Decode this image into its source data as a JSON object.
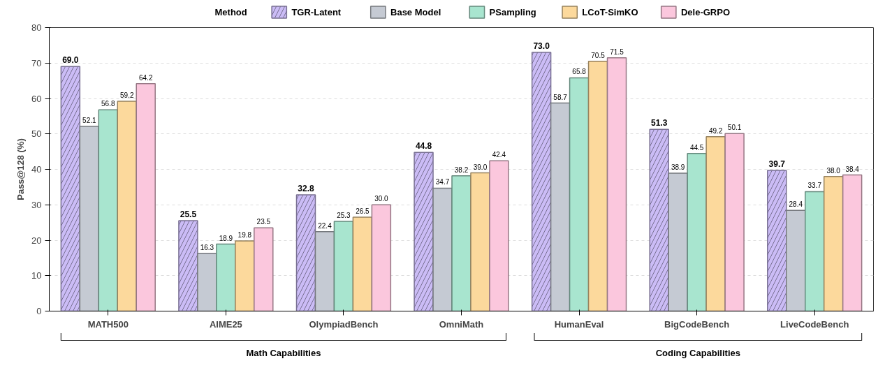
{
  "chart_data": {
    "type": "bar",
    "ylabel": "Pass@128 (%)",
    "legend_title": "Method",
    "legend": "top",
    "categories": [
      "MATH500",
      "AIME25",
      "OlympiadBench",
      "OmniMath",
      "HumanEval",
      "BigCodeBench",
      "LiveCodeBench"
    ],
    "series": [
      {
        "name": "TGR-Latent",
        "color": "#cbbcf6",
        "values": [
          69.0,
          25.5,
          32.8,
          44.8,
          73.0,
          51.3,
          39.7
        ],
        "value_labels": [
          "69.0",
          "25.5",
          "32.8",
          "44.8",
          "73.0",
          "51.3",
          "39.7"
        ]
      },
      {
        "name": "Base Model",
        "color": "#c5cad3",
        "values": [
          52.1,
          16.3,
          22.4,
          34.7,
          58.7,
          38.9,
          28.4
        ],
        "value_labels": [
          "52.1",
          "16.3",
          "22.4",
          "34.7",
          "58.7",
          "38.9",
          "28.4"
        ]
      },
      {
        "name": "PSampling",
        "color": "#a8e5cf",
        "values": [
          56.8,
          18.9,
          25.3,
          38.2,
          65.8,
          44.5,
          33.7
        ],
        "value_labels": [
          "56.8",
          "18.9",
          "25.3",
          "38.2",
          "65.8",
          "44.5",
          "33.7"
        ]
      },
      {
        "name": "LCoT-SimKO",
        "color": "#fcd99c",
        "values": [
          59.2,
          19.8,
          26.5,
          39.0,
          70.5,
          49.2,
          38.0
        ],
        "value_labels": [
          "59.2",
          "19.8",
          "26.5",
          "39.0",
          "70.5",
          "49.2",
          "38.0"
        ]
      },
      {
        "name": "Dele-GRPO",
        "color": "#fbc7dd",
        "values": [
          64.2,
          23.5,
          30.0,
          42.4,
          71.5,
          50.1,
          38.4
        ],
        "value_labels": [
          "64.2",
          "23.5",
          "30.0",
          "42.4",
          "71.5",
          "50.1",
          "38.4"
        ]
      }
    ],
    "ylim": [
      0,
      80
    ],
    "yticks": [
      0,
      10,
      20,
      30,
      40,
      50,
      60,
      70,
      80
    ],
    "grid": "y",
    "annotations": [
      "Math Capabilities",
      "Coding Capabilities"
    ]
  }
}
